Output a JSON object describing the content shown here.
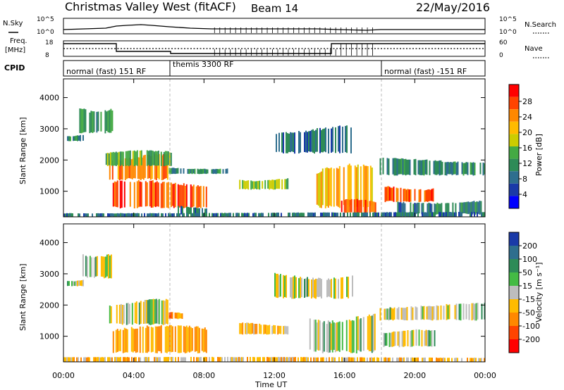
{
  "header": {
    "station": "Christmas Valley West (fitACF)",
    "beam": "Beam 14",
    "date": "22/May/2016"
  },
  "strips": {
    "nsky_label": "N.Sky",
    "nsearch_label": "N.Search",
    "noise_ticks": [
      "10^5",
      "10^0"
    ],
    "freq_label_1": "Freq.",
    "freq_label_2": "[MHz]",
    "freq_ticks": [
      "18",
      "8"
    ],
    "nave_label": "Nave",
    "nave_ticks": [
      "60",
      "0"
    ],
    "cpid_label": "CPID",
    "cpid_segments": [
      {
        "label": "normal (fast) 151 RF",
        "start": "00:00",
        "end": "06:00"
      },
      {
        "label": "themis 3300 RF",
        "start": "06:00",
        "end": "18:00"
      },
      {
        "label": "normal (fast) -151 RF",
        "start": "18:00",
        "end": "24:00"
      }
    ]
  },
  "axes": {
    "ylabel": "Slant Range [km]",
    "xlabel": "Time UT",
    "x_ticks": [
      "00:00",
      "04:00",
      "08:00",
      "12:00",
      "16:00",
      "20:00",
      "00:00"
    ],
    "y_ticks": [
      "4000",
      "3000",
      "2000",
      "1000"
    ]
  },
  "power_scale": {
    "label": "Power [dB]",
    "ticks": [
      "28",
      "24",
      "20",
      "16",
      "12",
      "8",
      "4"
    ],
    "colors": [
      "#ff0000",
      "#ff4400",
      "#ff8800",
      "#ffbb00",
      "#cccc00",
      "#44aa44",
      "#2e8b57",
      "#2e6e8e",
      "#1a3aa8",
      "#0000ff"
    ]
  },
  "velocity_scale": {
    "label": "Velocity [m s⁻¹]",
    "ticks": [
      "200",
      "100",
      "50",
      "15",
      "-15",
      "-50",
      "-100",
      "-200"
    ],
    "colors": [
      "#1a3aa8",
      "#2e6e8e",
      "#2e8b57",
      "#44bb44",
      "#bdbdbd",
      "#ffbb00",
      "#ff8800",
      "#ff4400",
      "#ff0000"
    ]
  },
  "chart_data": [
    {
      "type": "heatmap",
      "title": "Power",
      "xlabel": "Time UT",
      "ylabel": "Slant Range [km]",
      "xlim": [
        0,
        24
      ],
      "ylim": [
        180,
        4600
      ],
      "colorbar": {
        "label": "Power [dB]",
        "range": [
          0,
          32
        ]
      },
      "regions": [
        {
          "t": [
            0.9,
            2.8
          ],
          "r": [
            2850,
            3700
          ],
          "value": 12
        },
        {
          "t": [
            0.2,
            1.2
          ],
          "r": [
            2600,
            2800
          ],
          "value": 10
        },
        {
          "t": [
            2.6,
            6.0
          ],
          "r": [
            1350,
            2100
          ],
          "value": 26
        },
        {
          "t": [
            2.4,
            6.2
          ],
          "r": [
            1800,
            2250
          ],
          "value": 13
        },
        {
          "t": [
            2.8,
            8.2
          ],
          "r": [
            450,
            1250
          ],
          "value": 28
        },
        {
          "t": [
            6.5,
            8.3
          ],
          "r": [
            250,
            500
          ],
          "value": 8
        },
        {
          "t": [
            6.0,
            9.5
          ],
          "r": [
            1550,
            1750
          ],
          "value": 10
        },
        {
          "t": [
            10.0,
            12.8
          ],
          "r": [
            1050,
            1400
          ],
          "value": 16
        },
        {
          "t": [
            12.0,
            16.5
          ],
          "r": [
            2200,
            3000
          ],
          "value": 8
        },
        {
          "t": [
            14.0,
            17.8
          ],
          "r": [
            450,
            1700
          ],
          "value": 22
        },
        {
          "t": [
            15.8,
            17.8
          ],
          "r": [
            300,
            700
          ],
          "value": 28
        },
        {
          "t": [
            18.0,
            24.0
          ],
          "r": [
            1500,
            2000
          ],
          "value": 10
        },
        {
          "t": [
            18.2,
            21.2
          ],
          "r": [
            650,
            1150
          ],
          "value": 28
        },
        {
          "t": [
            19.0,
            24.0
          ],
          "r": [
            250,
            700
          ],
          "value": 9
        },
        {
          "t": [
            0.0,
            24.0
          ],
          "r": [
            180,
            320
          ],
          "value": 8
        }
      ]
    },
    {
      "type": "heatmap",
      "title": "Velocity",
      "xlabel": "Time UT",
      "ylabel": "Slant Range [km]",
      "xlim": [
        0,
        24
      ],
      "ylim": [
        180,
        4600
      ],
      "colorbar": {
        "label": "Velocity [m s⁻¹]",
        "range": [
          -250,
          250
        ]
      },
      "regions": [
        {
          "t": [
            1.0,
            2.8
          ],
          "r": [
            2850,
            3700
          ],
          "value": 0
        },
        {
          "t": [
            0.2,
            1.2
          ],
          "r": [
            2600,
            2800
          ],
          "value": 0
        },
        {
          "t": [
            2.6,
            6.0
          ],
          "r": [
            1350,
            2100
          ],
          "value": 0
        },
        {
          "t": [
            2.8,
            8.2
          ],
          "r": [
            450,
            1250
          ],
          "value": -60
        },
        {
          "t": [
            6.0,
            6.8
          ],
          "r": [
            1550,
            1750
          ],
          "value": -70
        },
        {
          "t": [
            10.0,
            12.8
          ],
          "r": [
            1050,
            1400
          ],
          "value": -25
        },
        {
          "t": [
            12.0,
            16.5
          ],
          "r": [
            2200,
            3000
          ],
          "value": 0
        },
        {
          "t": [
            14.0,
            17.8
          ],
          "r": [
            450,
            1700
          ],
          "value": 0
        },
        {
          "t": [
            18.0,
            24.0
          ],
          "r": [
            1500,
            2000
          ],
          "value": 0
        },
        {
          "t": [
            18.2,
            21.2
          ],
          "r": [
            650,
            1150
          ],
          "value": 0
        },
        {
          "t": [
            0.0,
            24.0
          ],
          "r": [
            180,
            320
          ],
          "value": -30
        }
      ]
    }
  ]
}
